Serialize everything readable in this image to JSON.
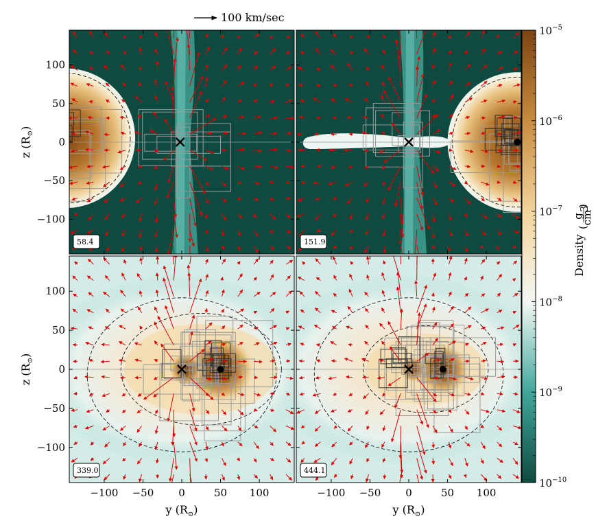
{
  "chart_data": {
    "type": "heatmap",
    "velocity_scale_label": "100 km/sec",
    "colorbar": {
      "label": "Density",
      "unit_numerator": "g",
      "unit_denominator": "cm",
      "unit_power": "3",
      "scale": "log",
      "range": [
        1e-10,
        1e-05
      ],
      "ticks": [
        {
          "base": "10",
          "exp": "−5",
          "value": 1e-05
        },
        {
          "base": "10",
          "exp": "−6",
          "value": 1e-06
        },
        {
          "base": "10",
          "exp": "−7",
          "value": 1e-07
        },
        {
          "base": "10",
          "exp": "−8",
          "value": 1e-08
        },
        {
          "base": "10",
          "exp": "−9",
          "value": 1e-09
        },
        {
          "base": "10",
          "exp": "−10",
          "value": 1e-10
        }
      ],
      "colors": [
        "#0e4a3f",
        "#40a89b",
        "#f4f7f4",
        "#f3d49a",
        "#c88c3e",
        "#7d4511"
      ]
    },
    "x_axis": {
      "label_var": "y",
      "label_unit": "R",
      "range": [
        -145,
        145
      ],
      "ticks": [
        -100,
        -50,
        0,
        50,
        100
      ],
      "tick_labels": [
        "−100",
        "−50",
        "0",
        "50",
        "100"
      ]
    },
    "z_axis": {
      "label_var": "z",
      "label_unit": "R",
      "range": [
        -145,
        145
      ],
      "ticks": [
        100,
        50,
        0,
        -50,
        -100
      ],
      "tick_labels": [
        "100",
        "50",
        "0",
        "−50",
        "−100"
      ]
    },
    "panels": [
      {
        "time": "58.4",
        "secondary_star": [
          -2,
          0
        ],
        "primary_center": [
          -150,
          5
        ],
        "primary_radius": 90,
        "phase": "early"
      },
      {
        "time": "151.9",
        "secondary_star": [
          0,
          0
        ],
        "primary_center": [
          140,
          0
        ],
        "primary_radius": 90,
        "phase": "early"
      },
      {
        "time": "339.0",
        "secondary_star": [
          0,
          0
        ],
        "primary_center": [
          50,
          0
        ],
        "primary_radius": 45,
        "phase": "late"
      },
      {
        "time": "444.1",
        "secondary_star": [
          0,
          0
        ],
        "primary_center": [
          44,
          0
        ],
        "primary_radius": 35,
        "phase": "late"
      }
    ]
  }
}
